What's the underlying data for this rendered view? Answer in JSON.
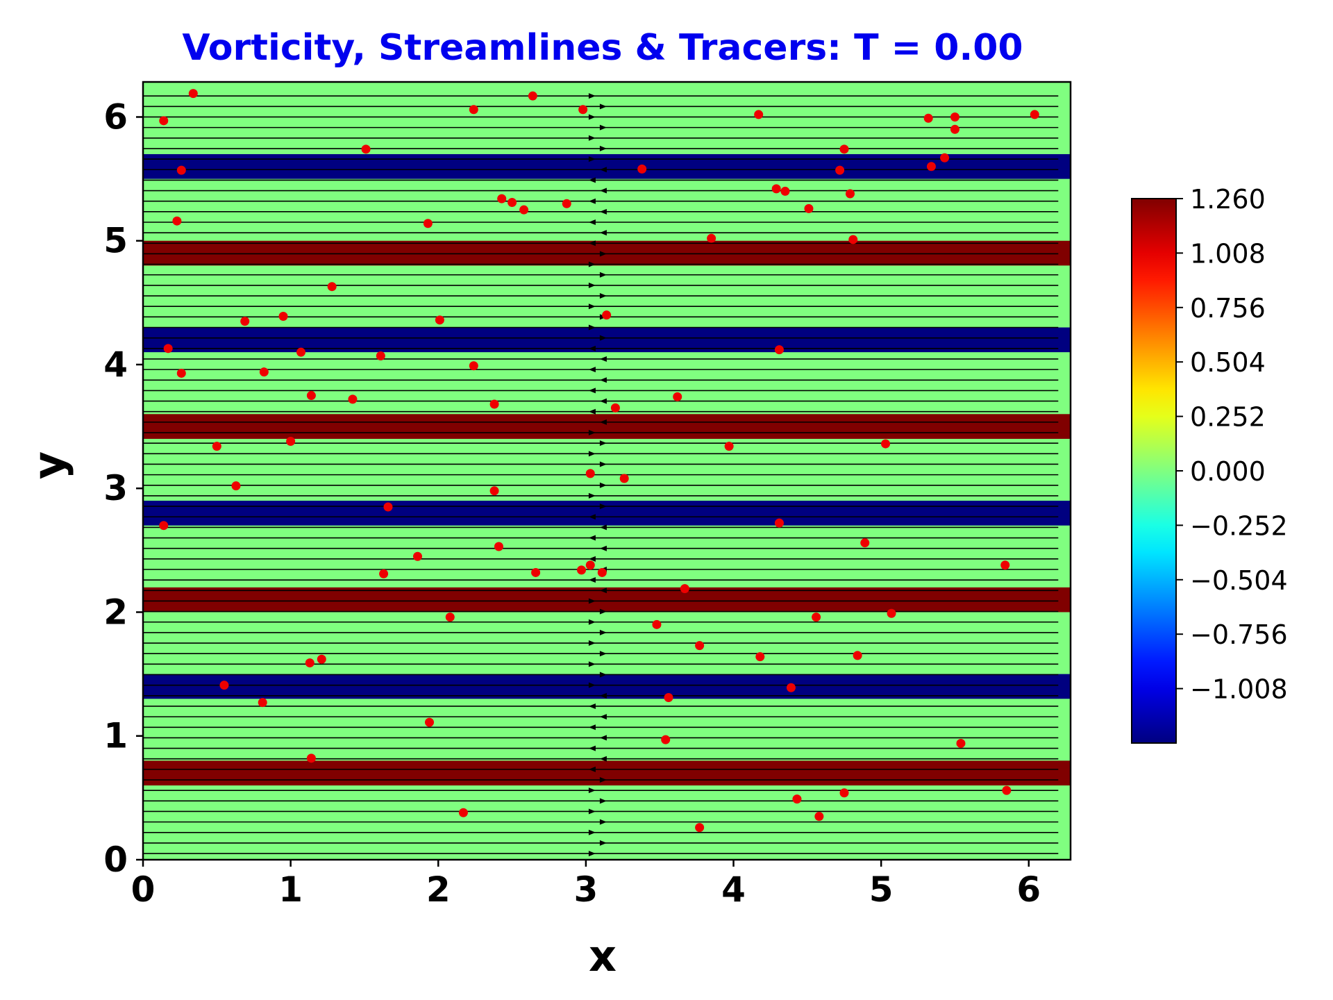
{
  "chart_data": {
    "type": "heatmap",
    "title": "Vorticity, Streamlines & Tracers: T = 0.00",
    "xlabel": "x",
    "ylabel": "y",
    "xlim": [
      0,
      6.2832
    ],
    "ylim": [
      0,
      6.2832
    ],
    "xticks": [
      0,
      1,
      2,
      3,
      4,
      5,
      6
    ],
    "yticks": [
      0,
      1,
      2,
      3,
      4,
      5,
      6
    ],
    "colormap": "jet",
    "colorbar": {
      "range": [
        -1.26,
        1.26
      ],
      "ticks": [
        "1.260",
        "1.008",
        "0.756",
        "0.504",
        "0.252",
        "0.000",
        "−0.252",
        "−0.504",
        "−0.756",
        "−1.008"
      ],
      "tick_values": [
        1.26,
        1.008,
        0.756,
        0.504,
        0.252,
        0.0,
        -0.252,
        -0.504,
        -0.756,
        -1.008
      ]
    },
    "vorticity_background": 0.0,
    "vorticity_bands": [
      {
        "y0": 0.6,
        "y1": 0.8,
        "value": 1.26
      },
      {
        "y0": 1.3,
        "y1": 1.5,
        "value": -1.26
      },
      {
        "y0": 2.0,
        "y1": 2.2,
        "value": 1.26
      },
      {
        "y0": 2.7,
        "y1": 2.9,
        "value": -1.26
      },
      {
        "y0": 3.4,
        "y1": 3.6,
        "value": 1.26
      },
      {
        "y0": 4.1,
        "y1": 4.3,
        "value": -1.26
      },
      {
        "y0": 4.8,
        "y1": 5.0,
        "value": 1.26
      },
      {
        "y0": 5.5,
        "y1": 5.7,
        "value": -1.26
      }
    ],
    "streamlines": {
      "orientation": "horizontal",
      "x_range": [
        0,
        6.2
      ],
      "y_start": 0.05,
      "y_step": 0.085,
      "count": 73,
      "color": "#000000"
    },
    "tracers": {
      "color": "#ee0000",
      "points": [
        [
          0.14,
          5.97
        ],
        [
          0.34,
          6.19
        ],
        [
          0.26,
          5.57
        ],
        [
          0.23,
          5.16
        ],
        [
          0.17,
          4.13
        ],
        [
          0.26,
          3.93
        ],
        [
          0.5,
          3.34
        ],
        [
          0.63,
          3.02
        ],
        [
          0.14,
          2.7
        ],
        [
          0.55,
          1.41
        ],
        [
          0.81,
          1.27
        ],
        [
          0.69,
          4.35
        ],
        [
          0.95,
          4.39
        ],
        [
          0.82,
          3.94
        ],
        [
          1.07,
          4.1
        ],
        [
          1.0,
          3.38
        ],
        [
          1.14,
          3.75
        ],
        [
          1.28,
          4.63
        ],
        [
          1.42,
          3.72
        ],
        [
          1.51,
          5.74
        ],
        [
          1.61,
          4.07
        ],
        [
          1.66,
          2.85
        ],
        [
          1.63,
          2.31
        ],
        [
          1.86,
          2.45
        ],
        [
          1.13,
          1.59
        ],
        [
          1.21,
          1.62
        ],
        [
          1.14,
          0.82
        ],
        [
          1.93,
          5.14
        ],
        [
          2.01,
          4.36
        ],
        [
          1.94,
          1.11
        ],
        [
          2.08,
          1.96
        ],
        [
          2.17,
          0.38
        ],
        [
          2.24,
          6.06
        ],
        [
          2.43,
          5.34
        ],
        [
          2.5,
          5.31
        ],
        [
          2.58,
          5.25
        ],
        [
          2.24,
          3.99
        ],
        [
          2.38,
          3.68
        ],
        [
          2.38,
          2.98
        ],
        [
          2.41,
          2.53
        ],
        [
          2.66,
          2.32
        ],
        [
          2.64,
          6.17
        ],
        [
          2.87,
          5.3
        ],
        [
          2.98,
          6.06
        ],
        [
          3.03,
          3.12
        ],
        [
          2.97,
          2.34
        ],
        [
          3.03,
          2.38
        ],
        [
          3.11,
          2.32
        ],
        [
          3.14,
          4.4
        ],
        [
          3.2,
          3.65
        ],
        [
          3.26,
          3.08
        ],
        [
          3.38,
          5.58
        ],
        [
          3.48,
          1.9
        ],
        [
          3.54,
          0.97
        ],
        [
          3.56,
          1.31
        ],
        [
          3.62,
          3.74
        ],
        [
          3.67,
          2.19
        ],
        [
          3.77,
          1.73
        ],
        [
          3.77,
          0.26
        ],
        [
          3.85,
          5.02
        ],
        [
          3.97,
          3.34
        ],
        [
          4.17,
          6.02
        ],
        [
          4.18,
          1.64
        ],
        [
          4.29,
          5.42
        ],
        [
          4.31,
          4.12
        ],
        [
          4.31,
          2.72
        ],
        [
          4.35,
          5.4
        ],
        [
          4.39,
          1.39
        ],
        [
          4.43,
          0.49
        ],
        [
          4.51,
          5.26
        ],
        [
          4.56,
          1.96
        ],
        [
          4.58,
          0.35
        ],
        [
          4.72,
          5.57
        ],
        [
          4.75,
          5.74
        ],
        [
          4.75,
          0.54
        ],
        [
          4.79,
          5.38
        ],
        [
          4.81,
          5.01
        ],
        [
          4.84,
          1.65
        ],
        [
          4.89,
          2.56
        ],
        [
          5.03,
          3.36
        ],
        [
          5.07,
          1.99
        ],
        [
          5.32,
          5.99
        ],
        [
          5.34,
          5.6
        ],
        [
          5.43,
          5.67
        ],
        [
          5.5,
          6.0
        ],
        [
          5.5,
          5.9
        ],
        [
          5.54,
          0.94
        ],
        [
          5.84,
          2.38
        ],
        [
          5.85,
          0.56
        ],
        [
          6.04,
          6.02
        ]
      ]
    }
  }
}
